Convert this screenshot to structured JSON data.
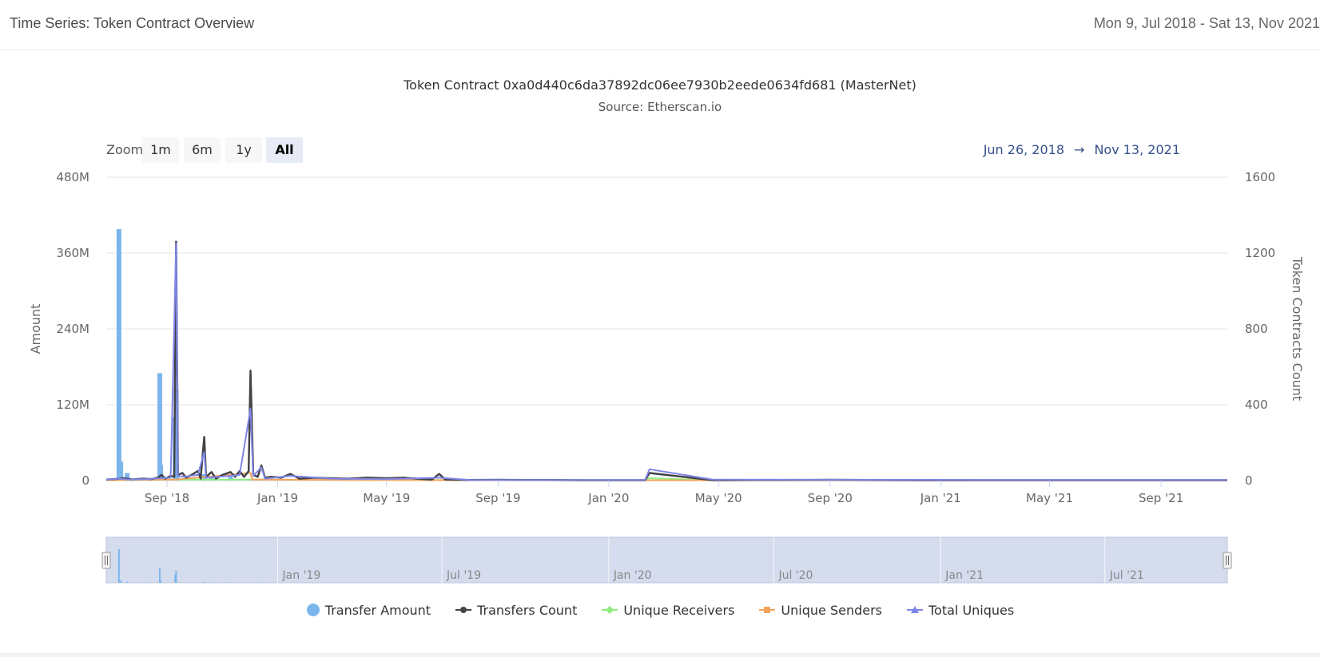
{
  "header": {
    "title": "Time Series: Token Contract Overview",
    "date_range": "Mon 9, Jul 2018 - Sat 13, Nov 2021"
  },
  "range_selector": {
    "zoom_label": "Zoom",
    "buttons": [
      "1m",
      "6m",
      "1y",
      "All"
    ],
    "active": "All",
    "from": "Jun 26, 2018",
    "arrow": "→",
    "to": "Nov 13, 2021"
  },
  "colors": {
    "transfer_amount": "#7cb5ec",
    "transfers_count": "#434348",
    "unique_receivers": "#90ed7d",
    "unique_senders": "#f7a35c",
    "total_uniques": "#8085e9",
    "navigator_fill": "#ccd6eb"
  },
  "chart_data": {
    "type": "line",
    "title": "Token Contract 0xa0d440c6da37892dc06ee7930b2eede0634fd681 (MasterNet)",
    "subtitle": "Source: Etherscan.io",
    "x_range": [
      "2018-06-26",
      "2021-11-13"
    ],
    "y_left": {
      "label": "Amount",
      "ticks": [
        "0",
        "120M",
        "240M",
        "360M",
        "480M"
      ],
      "range": [
        0,
        480000000
      ]
    },
    "y_right": {
      "label": "Token Contracts Count",
      "ticks": [
        "0",
        "400",
        "800",
        "1200",
        "1600"
      ],
      "range": [
        0,
        1600
      ]
    },
    "x_ticks": [
      "Sep '18",
      "Jan '19",
      "May '19",
      "Sep '19",
      "Jan '20",
      "May '20",
      "Sep '20",
      "Jan '21",
      "May '21",
      "Sep '21"
    ],
    "x_tick_dates": [
      "2018-09-01",
      "2019-01-01",
      "2019-05-01",
      "2019-09-01",
      "2020-01-01",
      "2020-05-01",
      "2020-09-01",
      "2021-01-01",
      "2021-05-01",
      "2021-09-01"
    ],
    "navigator_ticks": [
      "Jan '19",
      "Jul '19",
      "Jan '20",
      "Jul '20",
      "Jan '21",
      "Jul '21"
    ],
    "navigator_tick_dates": [
      "2019-01-01",
      "2019-07-01",
      "2020-01-01",
      "2020-07-01",
      "2021-01-01",
      "2021-07-01"
    ],
    "grid": true,
    "legend_position": "bottom-center",
    "series": [
      {
        "name": "Transfer Amount",
        "type": "column",
        "axis": "left",
        "points": [
          [
            "2018-07-10",
            398000000
          ],
          [
            "2018-07-12",
            30000000
          ],
          [
            "2018-07-19",
            12000000
          ],
          [
            "2018-08-12",
            2000000
          ],
          [
            "2018-08-24",
            170000000
          ],
          [
            "2018-08-25",
            25000000
          ],
          [
            "2018-09-10",
            100000000
          ],
          [
            "2018-09-11",
            145000000
          ],
          [
            "2018-09-12",
            8000000
          ],
          [
            "2018-10-12",
            10000000
          ],
          [
            "2018-10-20",
            4000000
          ],
          [
            "2018-11-10",
            6000000
          ],
          [
            "2018-12-15",
            3000000
          ]
        ]
      },
      {
        "name": "Transfers Count",
        "type": "line",
        "axis": "right",
        "points": [
          [
            "2018-06-26",
            5
          ],
          [
            "2018-07-05",
            8
          ],
          [
            "2018-07-15",
            12
          ],
          [
            "2018-07-25",
            6
          ],
          [
            "2018-08-05",
            10
          ],
          [
            "2018-08-15",
            8
          ],
          [
            "2018-08-22",
            15
          ],
          [
            "2018-08-26",
            30
          ],
          [
            "2018-08-30",
            10
          ],
          [
            "2018-09-05",
            25
          ],
          [
            "2018-09-09",
            20
          ],
          [
            "2018-09-11",
            1260
          ],
          [
            "2018-09-13",
            30
          ],
          [
            "2018-09-18",
            40
          ],
          [
            "2018-09-22",
            15
          ],
          [
            "2018-09-28",
            30
          ],
          [
            "2018-10-05",
            50
          ],
          [
            "2018-10-08",
            10
          ],
          [
            "2018-10-12",
            230
          ],
          [
            "2018-10-14",
            20
          ],
          [
            "2018-10-20",
            45
          ],
          [
            "2018-10-25",
            10
          ],
          [
            "2018-11-01",
            30
          ],
          [
            "2018-11-10",
            45
          ],
          [
            "2018-11-15",
            20
          ],
          [
            "2018-11-20",
            50
          ],
          [
            "2018-11-25",
            20
          ],
          [
            "2018-11-30",
            50
          ],
          [
            "2018-12-02",
            580
          ],
          [
            "2018-12-05",
            30
          ],
          [
            "2018-12-10",
            20
          ],
          [
            "2018-12-14",
            80
          ],
          [
            "2018-12-18",
            15
          ],
          [
            "2018-12-25",
            20
          ],
          [
            "2019-01-05",
            15
          ],
          [
            "2019-01-15",
            35
          ],
          [
            "2019-01-25",
            10
          ],
          [
            "2019-02-10",
            15
          ],
          [
            "2019-03-01",
            12
          ],
          [
            "2019-03-20",
            10
          ],
          [
            "2019-04-10",
            15
          ],
          [
            "2019-05-01",
            12
          ],
          [
            "2019-05-20",
            15
          ],
          [
            "2019-06-10",
            8
          ],
          [
            "2019-06-20",
            5
          ],
          [
            "2019-06-28",
            35
          ],
          [
            "2019-07-05",
            5
          ],
          [
            "2019-08-01",
            3
          ],
          [
            "2019-09-01",
            4
          ],
          [
            "2019-10-01",
            3
          ],
          [
            "2019-11-01",
            3
          ],
          [
            "2019-12-01",
            2
          ],
          [
            "2020-01-01",
            2
          ],
          [
            "2020-02-10",
            2
          ],
          [
            "2020-02-15",
            40
          ],
          [
            "2020-04-25",
            2
          ],
          [
            "2020-06-01",
            3
          ],
          [
            "2020-09-01",
            4
          ],
          [
            "2020-12-01",
            2
          ],
          [
            "2021-03-01",
            2
          ],
          [
            "2021-07-01",
            2
          ],
          [
            "2021-11-13",
            2
          ]
        ]
      },
      {
        "name": "Unique Receivers",
        "type": "line",
        "axis": "right",
        "points": [
          [
            "2018-06-26",
            2
          ],
          [
            "2018-09-11",
            5
          ],
          [
            "2018-12-01",
            5
          ],
          [
            "2019-06-28",
            3
          ],
          [
            "2020-02-10",
            2
          ],
          [
            "2020-02-15",
            12
          ],
          [
            "2020-04-25",
            2
          ],
          [
            "2021-11-13",
            2
          ]
        ]
      },
      {
        "name": "Unique Senders",
        "type": "line",
        "axis": "right",
        "points": [
          [
            "2018-06-26",
            2
          ],
          [
            "2018-09-11",
            6
          ],
          [
            "2018-12-02",
            40
          ],
          [
            "2018-12-04",
            5
          ],
          [
            "2019-06-28",
            2
          ],
          [
            "2021-11-13",
            1
          ]
        ]
      },
      {
        "name": "Total Uniques",
        "type": "line",
        "axis": "right",
        "points": [
          [
            "2018-06-26",
            5
          ],
          [
            "2018-07-10",
            10
          ],
          [
            "2018-07-20",
            5
          ],
          [
            "2018-08-10",
            8
          ],
          [
            "2018-08-24",
            12
          ],
          [
            "2018-09-05",
            15
          ],
          [
            "2018-09-11",
            1250
          ],
          [
            "2018-09-13",
            25
          ],
          [
            "2018-09-20",
            20
          ],
          [
            "2018-10-05",
            30
          ],
          [
            "2018-10-12",
            150
          ],
          [
            "2018-10-14",
            15
          ],
          [
            "2018-11-10",
            25
          ],
          [
            "2018-11-20",
            30
          ],
          [
            "2018-12-02",
            380
          ],
          [
            "2018-12-05",
            25
          ],
          [
            "2018-12-14",
            70
          ],
          [
            "2018-12-18",
            10
          ],
          [
            "2019-01-15",
            25
          ],
          [
            "2019-03-01",
            10
          ],
          [
            "2019-05-01",
            8
          ],
          [
            "2019-06-28",
            15
          ],
          [
            "2019-08-01",
            3
          ],
          [
            "2019-12-01",
            3
          ],
          [
            "2020-02-10",
            3
          ],
          [
            "2020-02-15",
            60
          ],
          [
            "2020-04-25",
            5
          ],
          [
            "2020-09-01",
            4
          ],
          [
            "2021-03-01",
            3
          ],
          [
            "2021-11-13",
            3
          ]
        ]
      }
    ]
  }
}
